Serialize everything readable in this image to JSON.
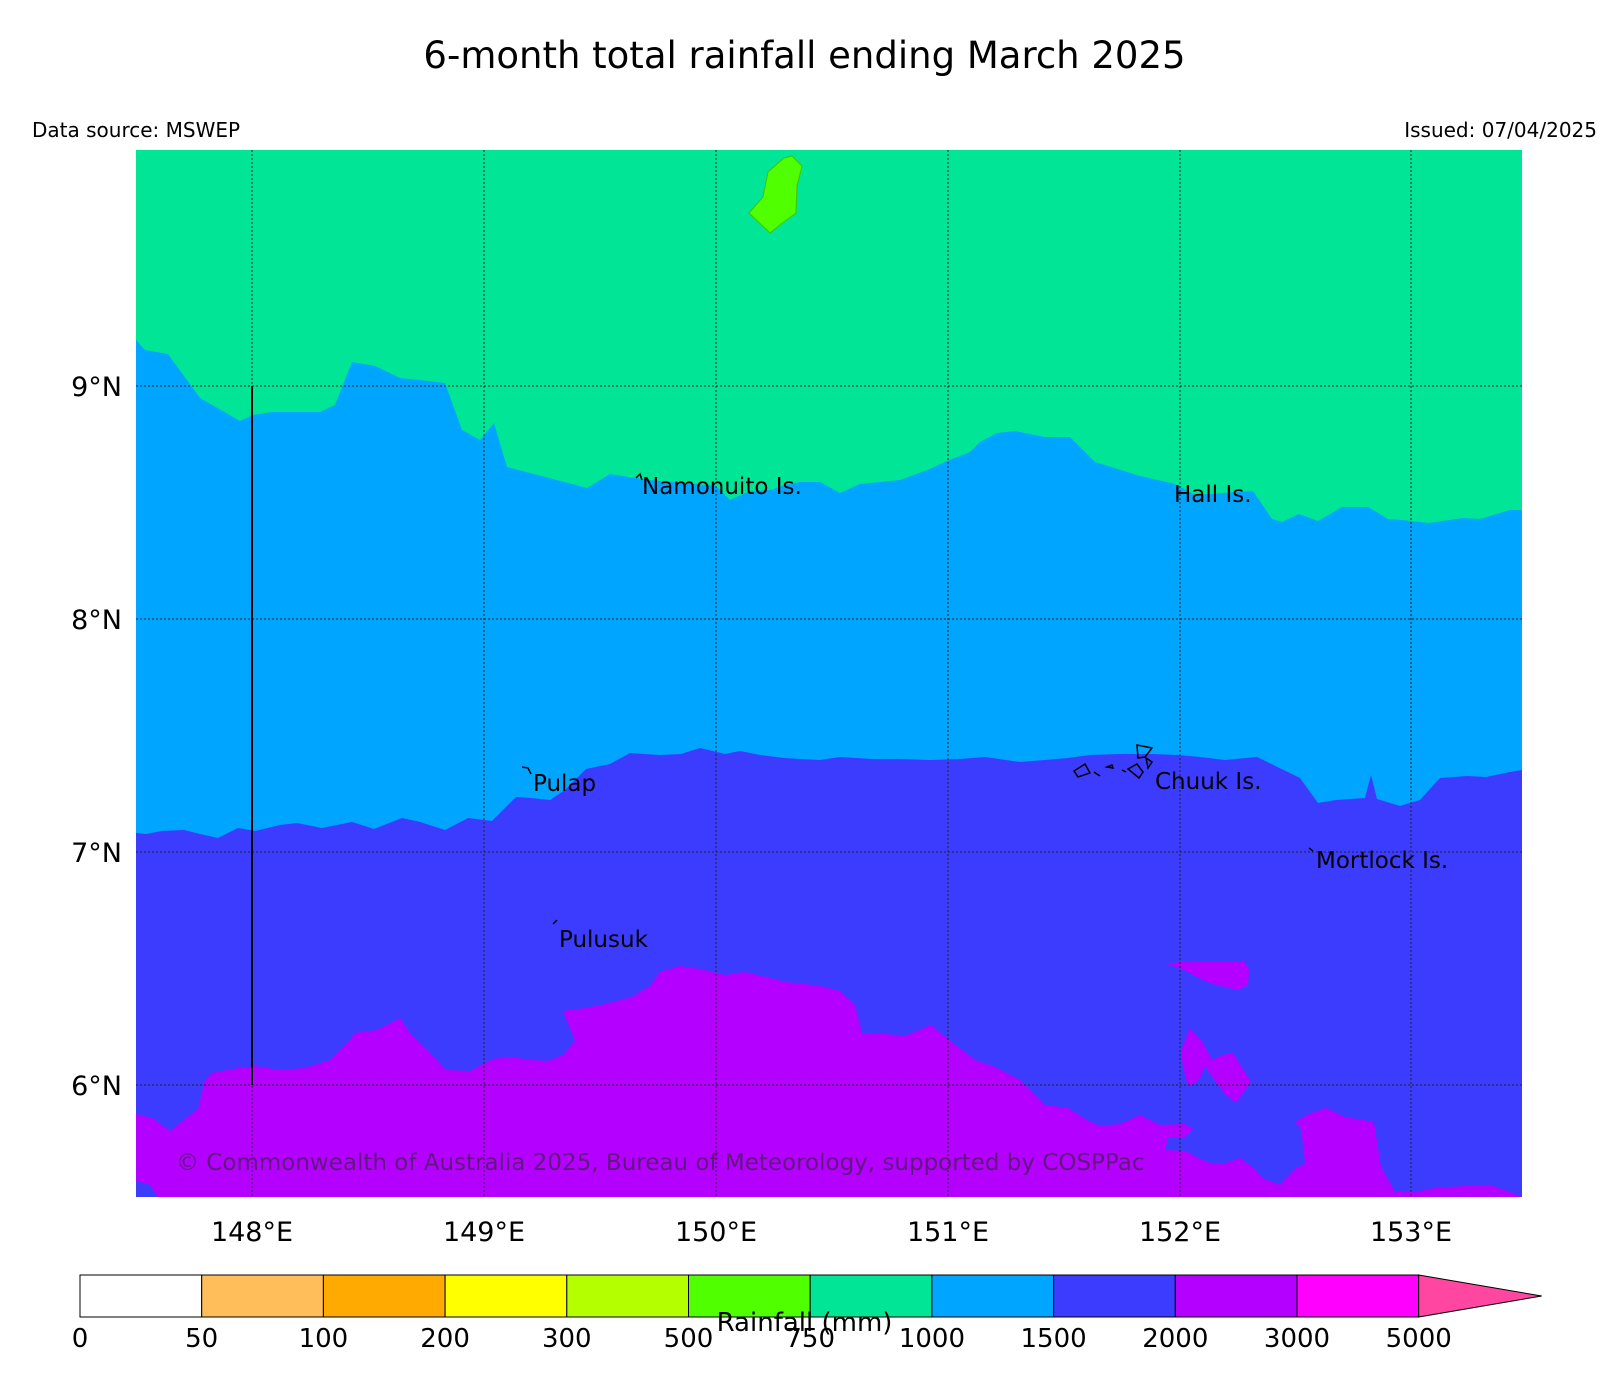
{
  "title": "6-month total rainfall ending March 2025",
  "data_source": "Data source: MSWEP",
  "issued": "Issued: 07/04/2025",
  "copyright": "© Commonwealth of Australia 2025, Bureau of Meteorology, supported by COSPPac",
  "map": {
    "lon_ticks": [
      "148°E",
      "149°E",
      "150°E",
      "151°E",
      "152°E",
      "153°E"
    ],
    "lat_ticks": [
      "9°N",
      "8°N",
      "7°N",
      "6°N"
    ],
    "places": [
      {
        "name": "Namonuito Is."
      },
      {
        "name": "Hall Is."
      },
      {
        "name": "Pulap"
      },
      {
        "name": "Chuuk Is."
      },
      {
        "name": "Mortlock Is."
      },
      {
        "name": "Pulusuk"
      }
    ],
    "region_colors": {
      "750-1000": "#00e696",
      "500-750": "#50ff00",
      "1000-1500": "#00a5ff",
      "1500-2000": "#3c3cff",
      "2000-3000": "#b400ff"
    }
  },
  "colorbar": {
    "label": "Rainfall (mm)",
    "ticks": [
      "0",
      "50",
      "100",
      "200",
      "300",
      "500",
      "750",
      "1000",
      "1500",
      "2000",
      "3000",
      "5000"
    ],
    "colors": [
      "#ffffff",
      "#ffbe5a",
      "#ffaa00",
      "#ffff00",
      "#b4ff00",
      "#50ff00",
      "#00e696",
      "#00a5ff",
      "#3c3cff",
      "#b400ff",
      "#ff00ff"
    ],
    "extend_color": "#ff46a0"
  }
}
